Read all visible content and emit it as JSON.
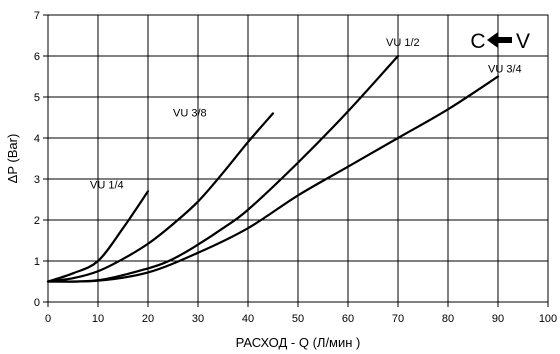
{
  "chart_data": {
    "type": "line",
    "xlabel": "РАСХОД - Q (Л/мин )",
    "ylabel": "ΔP (Bar)",
    "xlim": [
      0,
      100
    ],
    "ylim": [
      0,
      7
    ],
    "xticks": [
      "0",
      "10",
      "20",
      "30",
      "40",
      "50",
      "60",
      "70",
      "80",
      "90",
      "100"
    ],
    "yticks": [
      "0",
      "1",
      "2",
      "3",
      "4",
      "5",
      "6",
      "7"
    ],
    "grid": true,
    "series": [
      {
        "name": "VU 1/4",
        "x": [
          0,
          5,
          10,
          15,
          20
        ],
        "y": [
          0.5,
          0.7,
          1.0,
          1.8,
          2.7
        ]
      },
      {
        "name": "VU 3/8",
        "x": [
          0,
          5,
          10,
          15,
          20,
          25,
          30,
          35,
          40,
          45
        ],
        "y": [
          0.5,
          0.58,
          0.75,
          1.05,
          1.42,
          1.9,
          2.45,
          3.15,
          3.9,
          4.6
        ]
      },
      {
        "name": "VU 1/2",
        "x": [
          0,
          10,
          20,
          25,
          30,
          35,
          40,
          50,
          60,
          70
        ],
        "y": [
          0.5,
          0.53,
          0.82,
          1.05,
          1.4,
          1.8,
          2.25,
          3.4,
          4.65,
          6.0
        ]
      },
      {
        "name": "VU 3/4",
        "x": [
          0,
          10,
          20,
          30,
          40,
          50,
          60,
          70,
          80,
          90
        ],
        "y": [
          0.5,
          0.52,
          0.72,
          1.2,
          1.8,
          2.6,
          3.3,
          4.0,
          4.7,
          5.5
        ]
      }
    ],
    "annotation": {
      "left_letter": "C",
      "right_letter": "V",
      "arrow": "left-arrow-icon"
    },
    "line_color": "#000000",
    "grid_color": "#000000"
  }
}
